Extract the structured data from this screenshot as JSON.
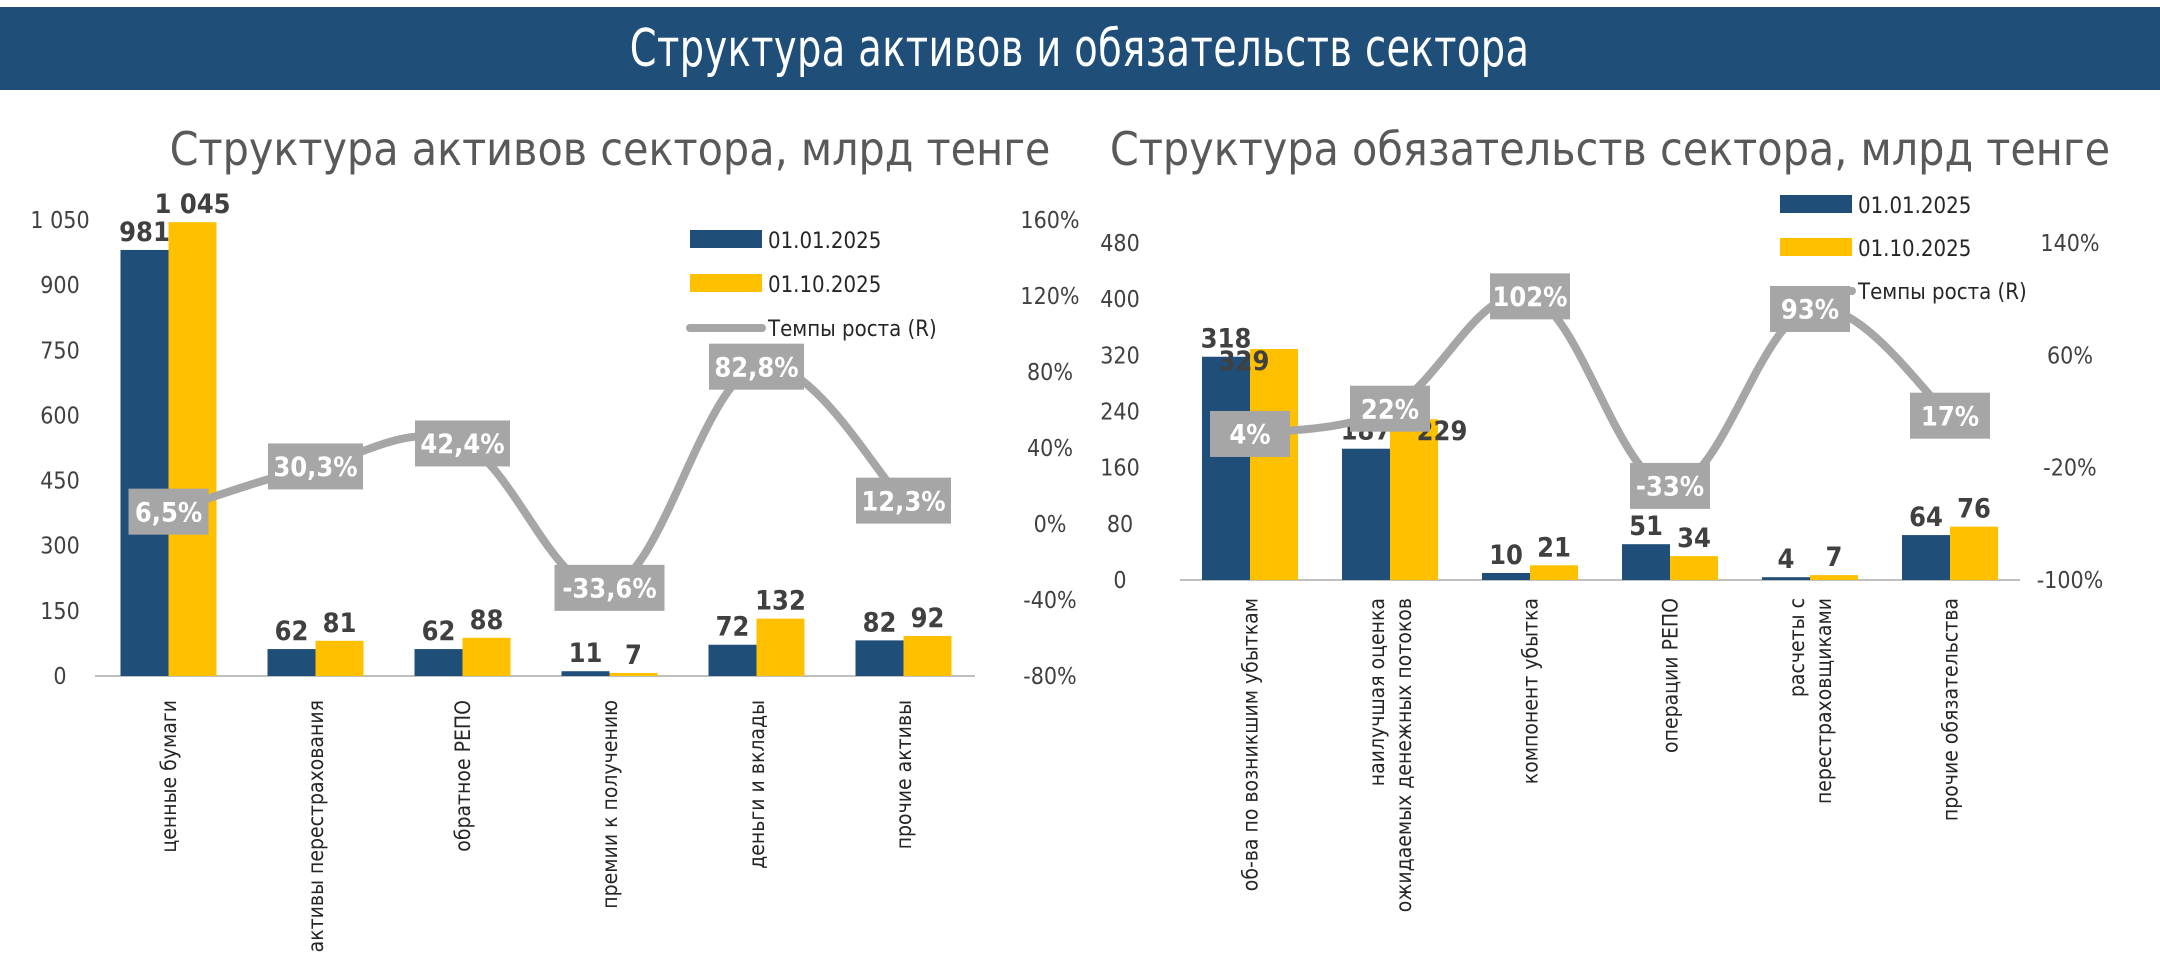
{
  "page_title": "Структура активов и обязательств сектора",
  "colors": {
    "banner": "#1f4e79",
    "series_1": "#1f4e79",
    "series_2": "#ffc000",
    "growth_line": "#a6a6a6",
    "growth_label_bg": "#a6a6a6"
  },
  "chart_data": [
    {
      "type": "bar",
      "title": "Структура активов сектора, млрд тенге",
      "categories": [
        "ценные бумаги",
        "активы перестрахования",
        "обратное РЕПО",
        "премии к получению",
        "деньги и вклады",
        "прочие активы"
      ],
      "series": [
        {
          "name": "01.01.2025",
          "values": [
            981,
            62,
            62,
            11,
            72,
            82
          ],
          "labels": [
            "981",
            "62",
            "62",
            "11",
            "72",
            "82"
          ]
        },
        {
          "name": "01.10.2025",
          "values": [
            1045,
            81,
            88,
            7,
            132,
            92
          ],
          "labels": [
            "1 045",
            "81",
            "88",
            "7",
            "132",
            "92"
          ]
        }
      ],
      "line_series": {
        "name": "Темпы роста (R)",
        "values": [
          6.5,
          30.3,
          42.4,
          -33.6,
          82.8,
          12.3
        ],
        "labels": [
          "6,5%",
          "30,3%",
          "42,4%",
          "-33,6%",
          "82,8%",
          "12,3%"
        ]
      },
      "y_ticks": [
        "0",
        "150",
        "300",
        "450",
        "600",
        "750",
        "900",
        "1 050"
      ],
      "ylim": [
        0,
        1050
      ],
      "y2_ticks": [
        "-80%",
        "-40%",
        "0%",
        "40%",
        "80%",
        "120%",
        "160%"
      ],
      "y2lim": [
        -80,
        160
      ],
      "legend": [
        "01.01.2025",
        "01.10.2025",
        "Темпы роста (R)"
      ],
      "legend_position": "top-right",
      "grid": false
    },
    {
      "type": "bar",
      "title": "Структура обязательств сектора, млрд тенге",
      "categories": [
        "об-ва по возникшим убыткам",
        "наилучшая оценка ожидаемых денежных потоков",
        "компонент убытка",
        "операции РЕПО",
        "расчеты с перестраховщиками",
        "прочие обязательства"
      ],
      "series": [
        {
          "name": "01.01.2025",
          "values": [
            318,
            187,
            10,
            51,
            4,
            64
          ],
          "labels": [
            "318",
            "187",
            "10",
            "51",
            "4",
            "64"
          ]
        },
        {
          "name": "01.10.2025",
          "values": [
            329,
            229,
            21,
            34,
            7,
            76
          ],
          "labels": [
            "329",
            "229",
            "21",
            "34",
            "7",
            "76"
          ]
        }
      ],
      "line_series": {
        "name": "Темпы роста (R)",
        "values": [
          4,
          22,
          102,
          -33,
          93,
          17
        ],
        "labels": [
          "4%",
          "22%",
          "102%",
          "-33%",
          "93%",
          "17%"
        ]
      },
      "y_ticks": [
        "0",
        "80",
        "160",
        "240",
        "320",
        "400",
        "480"
      ],
      "ylim": [
        0,
        480
      ],
      "y2_ticks": [
        "-100%",
        "-20%",
        "60%",
        "140%"
      ],
      "y2lim": [
        -100,
        140
      ],
      "legend": [
        "01.01.2025",
        "01.10.2025",
        "Темпы роста (R)"
      ],
      "legend_position": "top-right",
      "grid": false
    }
  ]
}
